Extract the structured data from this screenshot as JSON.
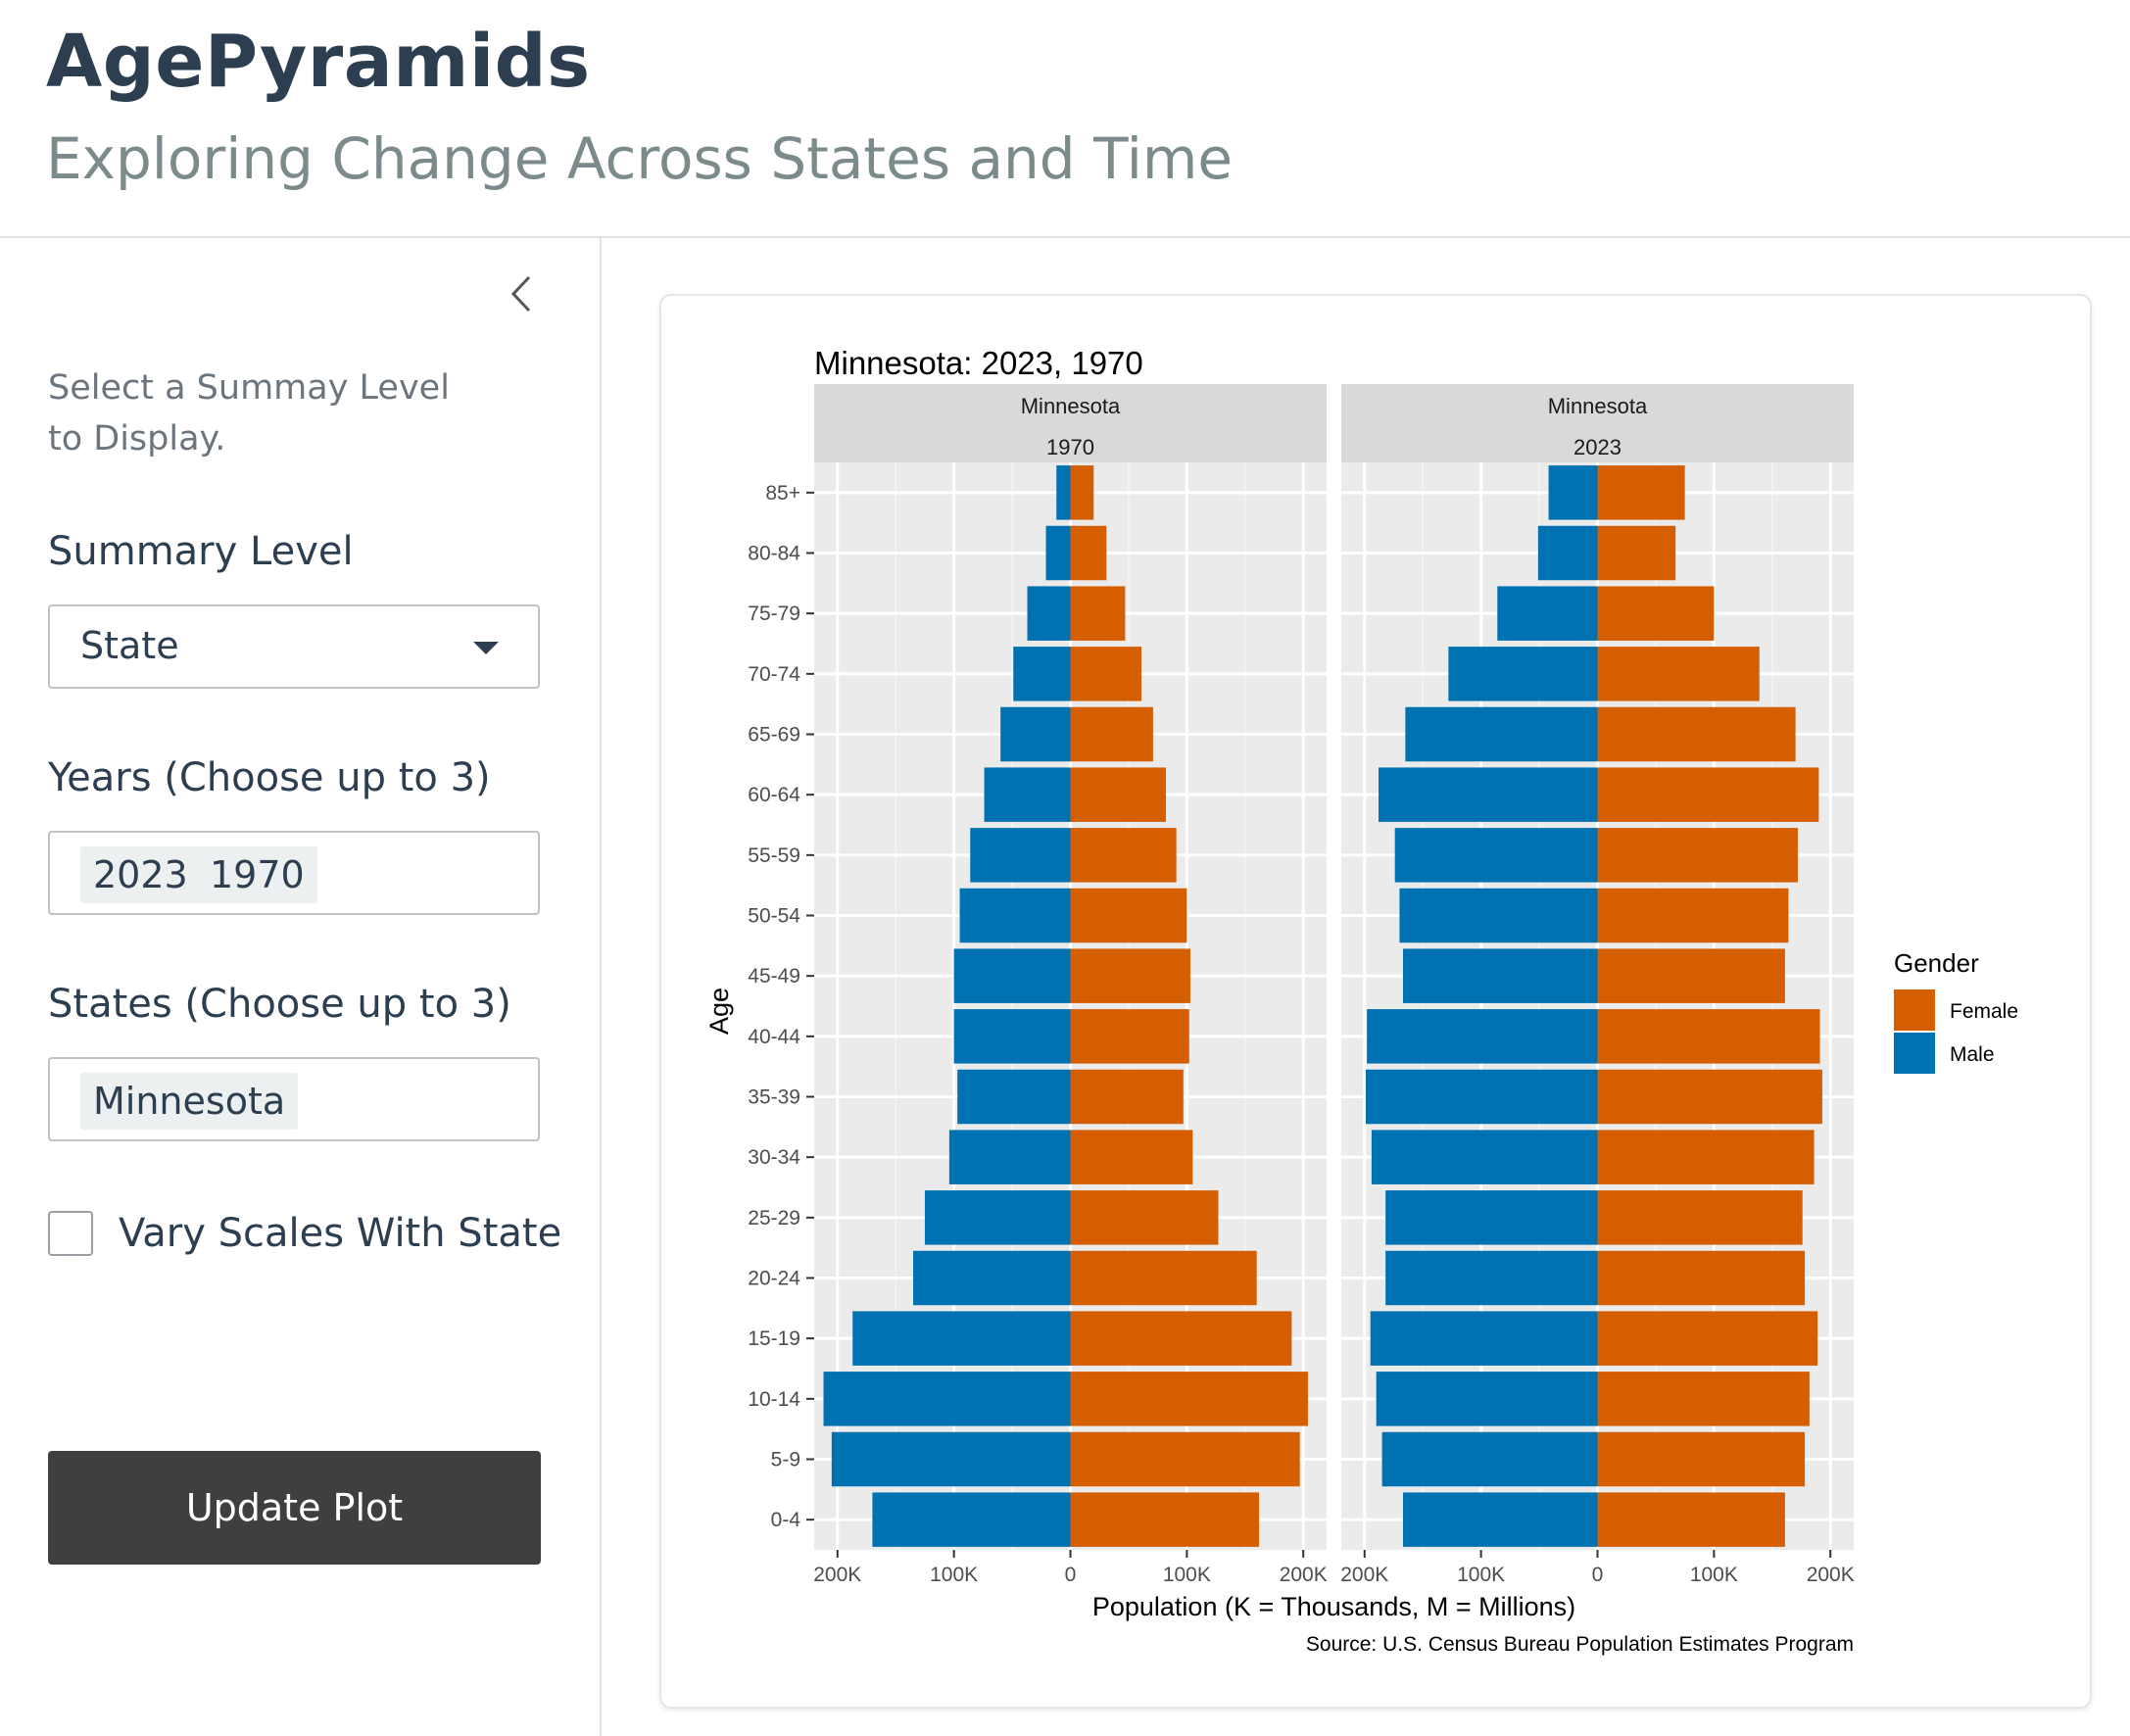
{
  "app": {
    "title": "AgePyramids",
    "subtitle": "Exploring Change Across States and Time"
  },
  "sidebar": {
    "collapse_icon": "chevron-left-icon",
    "help_text": "Select a Summay Level to Display.",
    "summary_level": {
      "label": "Summary Level",
      "value": "State"
    },
    "years": {
      "label": "Years (Choose up to 3)",
      "selected": [
        "2023",
        "1970"
      ]
    },
    "states": {
      "label": "States (Choose up to 3)",
      "selected": [
        "Minnesota"
      ]
    },
    "vary_scales": {
      "label": "Vary Scales With State",
      "checked": false
    },
    "update_button": "Update Plot"
  },
  "chart_data": {
    "type": "bar",
    "orientation": "horizontal-pyramid",
    "title": "Minnesota: 2023, 1970",
    "xlabel": "Population (K = Thousands, M = Millions)",
    "ylabel": "Age",
    "caption": "Source: U.S. Census Bureau Population Estimates Program",
    "legend": {
      "title": "Gender",
      "position": "right",
      "items": [
        {
          "name": "Female",
          "color": "#d55e00"
        },
        {
          "name": "Male",
          "color": "#0072b2"
        }
      ]
    },
    "xlim": [
      -220000,
      220000
    ],
    "xticks": [
      -200000,
      -100000,
      0,
      100000,
      200000
    ],
    "xtick_labels": [
      "200K",
      "100K",
      "0",
      "100K",
      "200K"
    ],
    "categories": [
      "0-4",
      "5-9",
      "10-14",
      "15-19",
      "20-24",
      "25-29",
      "30-34",
      "35-39",
      "40-44",
      "45-49",
      "50-54",
      "55-59",
      "60-64",
      "65-69",
      "70-74",
      "75-79",
      "80-84",
      "85+"
    ],
    "panels": [
      {
        "strip": [
          "Minnesota",
          "1970"
        ],
        "series": [
          {
            "name": "Male",
            "color": "#0072b2",
            "values": [
              170000,
              205000,
              212000,
              187000,
              135000,
              125000,
              104000,
              97000,
              100000,
              100000,
              95000,
              86000,
              74000,
              60000,
              49000,
              37000,
              21000,
              12000
            ]
          },
          {
            "name": "Female",
            "color": "#d55e00",
            "values": [
              162000,
              197000,
              204000,
              190000,
              160000,
              127000,
              105000,
              97000,
              102000,
              103000,
              100000,
              91000,
              82000,
              71000,
              61000,
              47000,
              31000,
              20000
            ]
          }
        ]
      },
      {
        "strip": [
          "Minnesota",
          "2023"
        ],
        "series": [
          {
            "name": "Male",
            "color": "#0072b2",
            "values": [
              167000,
              185000,
              190000,
              195000,
              182000,
              182000,
              194000,
              199000,
              198000,
              167000,
              170000,
              174000,
              188000,
              165000,
              128000,
              86000,
              51000,
              42000
            ]
          },
          {
            "name": "Female",
            "color": "#d55e00",
            "values": [
              161000,
              178000,
              182000,
              189000,
              178000,
              176000,
              186000,
              193000,
              191000,
              161000,
              164000,
              172000,
              190000,
              170000,
              139000,
              100000,
              67000,
              75000
            ]
          }
        ]
      }
    ]
  }
}
